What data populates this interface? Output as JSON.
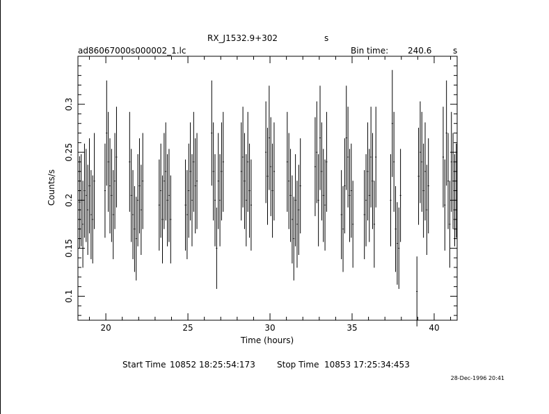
{
  "header": {
    "object": "RX_J1532.9+302",
    "object_unit": "s",
    "file": "ad86067000s000002_1.lc",
    "bin_label": "Bin time:",
    "bin_value": "240.6",
    "bin_unit": "s"
  },
  "footer": {
    "start_label": "Start Time",
    "start_value": "10852 18:25:54:173",
    "stop_label": "Stop Time",
    "stop_value": "10853 17:25:34:453",
    "timestamp": "28-Dec-1996 20:41"
  },
  "chart_data": {
    "type": "scatter",
    "xlabel": "Time (hours)",
    "ylabel": "Counts/s",
    "xlim": [
      18.3,
      41.4
    ],
    "ylim": [
      0.075,
      0.35
    ],
    "xticks": [
      "20",
      "25",
      "30",
      "35",
      "40"
    ],
    "xtick_values": [
      20,
      25,
      30,
      35,
      40
    ],
    "yticks": [
      "0.1",
      "0.15",
      "0.2",
      "0.25",
      "0.3"
    ],
    "ytick_values": [
      0.1,
      0.15,
      0.2,
      0.25,
      0.3
    ],
    "error_bars": true,
    "series": [
      {
        "points": [
          [
            18.4,
            0.198
          ],
          [
            18.5,
            0.2
          ],
          [
            18.6,
            0.175
          ],
          [
            18.7,
            0.21
          ],
          [
            18.8,
            0.205
          ],
          [
            18.9,
            0.19
          ],
          [
            19.0,
            0.215
          ],
          [
            19.1,
            0.185
          ],
          [
            19.2,
            0.18
          ],
          [
            19.3,
            0.22
          ],
          [
            19.95,
            0.21
          ],
          [
            20.05,
            0.27
          ],
          [
            20.15,
            0.24
          ],
          [
            20.25,
            0.215
          ],
          [
            20.35,
            0.205
          ],
          [
            20.45,
            0.185
          ],
          [
            20.55,
            0.22
          ],
          [
            20.65,
            0.245
          ],
          [
            21.45,
            0.24
          ],
          [
            21.55,
            0.205
          ],
          [
            21.65,
            0.185
          ],
          [
            21.75,
            0.17
          ],
          [
            21.85,
            0.16
          ],
          [
            21.95,
            0.2
          ],
          [
            22.05,
            0.215
          ],
          [
            22.15,
            0.19
          ],
          [
            22.25,
            0.22
          ],
          [
            23.25,
            0.195
          ],
          [
            23.35,
            0.21
          ],
          [
            23.45,
            0.18
          ],
          [
            23.55,
            0.22
          ],
          [
            23.65,
            0.23
          ],
          [
            23.75,
            0.2
          ],
          [
            23.85,
            0.205
          ],
          [
            23.95,
            0.18
          ],
          [
            24.85,
            0.195
          ],
          [
            24.95,
            0.185
          ],
          [
            25.05,
            0.21
          ],
          [
            25.15,
            0.23
          ],
          [
            25.25,
            0.2
          ],
          [
            25.35,
            0.24
          ],
          [
            25.45,
            0.215
          ],
          [
            25.55,
            0.22
          ],
          [
            26.45,
            0.27
          ],
          [
            26.55,
            0.23
          ],
          [
            26.65,
            0.2
          ],
          [
            26.75,
            0.15
          ],
          [
            26.85,
            0.22
          ],
          [
            26.95,
            0.2
          ],
          [
            27.05,
            0.23
          ],
          [
            27.15,
            0.24
          ],
          [
            28.25,
            0.23
          ],
          [
            28.35,
            0.245
          ],
          [
            28.45,
            0.22
          ],
          [
            28.55,
            0.2
          ],
          [
            28.65,
            0.24
          ],
          [
            28.75,
            0.21
          ],
          [
            28.85,
            0.195
          ],
          [
            29.75,
            0.25
          ],
          [
            29.85,
            0.225
          ],
          [
            29.95,
            0.265
          ],
          [
            30.05,
            0.235
          ],
          [
            30.15,
            0.21
          ],
          [
            30.25,
            0.23
          ],
          [
            31.05,
            0.24
          ],
          [
            31.15,
            0.22
          ],
          [
            31.25,
            0.205
          ],
          [
            31.35,
            0.18
          ],
          [
            31.45,
            0.16
          ],
          [
            31.55,
            0.2
          ],
          [
            31.65,
            0.175
          ],
          [
            31.75,
            0.19
          ],
          [
            31.85,
            0.215
          ],
          [
            32.75,
            0.235
          ],
          [
            32.85,
            0.25
          ],
          [
            32.95,
            0.2
          ],
          [
            33.05,
            0.265
          ],
          [
            33.15,
            0.23
          ],
          [
            33.25,
            0.205
          ],
          [
            33.35,
            0.195
          ],
          [
            33.45,
            0.24
          ],
          [
            34.35,
            0.185
          ],
          [
            34.45,
            0.17
          ],
          [
            34.55,
            0.215
          ],
          [
            34.65,
            0.265
          ],
          [
            34.75,
            0.245
          ],
          [
            34.85,
            0.205
          ],
          [
            34.95,
            0.21
          ],
          [
            35.05,
            0.175
          ],
          [
            35.75,
            0.185
          ],
          [
            35.85,
            0.2
          ],
          [
            35.95,
            0.23
          ],
          [
            36.05,
            0.205
          ],
          [
            36.15,
            0.245
          ],
          [
            36.25,
            0.22
          ],
          [
            36.35,
            0.175
          ],
          [
            36.45,
            0.245
          ],
          [
            37.35,
            0.2
          ],
          [
            37.45,
            0.28
          ],
          [
            37.55,
            0.24
          ],
          [
            37.65,
            0.17
          ],
          [
            37.75,
            0.155
          ],
          [
            37.85,
            0.15
          ],
          [
            37.95,
            0.205
          ],
          [
            38.95,
            0.105
          ],
          [
            39.05,
            0.225
          ],
          [
            39.15,
            0.25
          ],
          [
            39.25,
            0.24
          ],
          [
            39.35,
            0.21
          ],
          [
            39.45,
            0.23
          ],
          [
            39.55,
            0.19
          ],
          [
            39.65,
            0.215
          ],
          [
            40.55,
            0.245
          ],
          [
            40.65,
            0.195
          ],
          [
            40.75,
            0.27
          ],
          [
            40.85,
            0.22
          ],
          [
            40.95,
            0.175
          ],
          [
            41.05,
            0.24
          ],
          [
            41.15,
            0.22
          ],
          [
            41.25,
            0.2
          ],
          [
            41.35,
            0.21
          ]
        ]
      }
    ]
  }
}
